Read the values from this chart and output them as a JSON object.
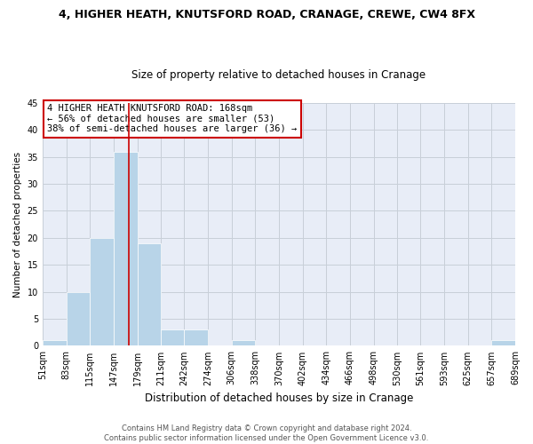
{
  "title": "4, HIGHER HEATH, KNUTSFORD ROAD, CRANAGE, CREWE, CW4 8FX",
  "subtitle": "Size of property relative to detached houses in Cranage",
  "xlabel": "Distribution of detached houses by size in Cranage",
  "ylabel": "Number of detached properties",
  "bar_color": "#b8d4e8",
  "bar_edge_color": "#ffffff",
  "marker_line_color": "#cc0000",
  "marker_value": 168,
  "bin_edges": [
    51,
    83,
    115,
    147,
    179,
    211,
    242,
    274,
    306,
    338,
    370,
    402,
    434,
    466,
    498,
    530,
    561,
    593,
    625,
    657,
    689
  ],
  "bin_labels": [
    "51sqm",
    "83sqm",
    "115sqm",
    "147sqm",
    "179sqm",
    "211sqm",
    "242sqm",
    "274sqm",
    "306sqm",
    "338sqm",
    "370sqm",
    "402sqm",
    "434sqm",
    "466sqm",
    "498sqm",
    "530sqm",
    "561sqm",
    "593sqm",
    "625sqm",
    "657sqm",
    "689sqm"
  ],
  "counts": [
    1,
    10,
    20,
    36,
    19,
    3,
    3,
    0,
    1,
    0,
    0,
    0,
    0,
    0,
    0,
    0,
    0,
    0,
    0,
    1
  ],
  "ylim": [
    0,
    45
  ],
  "yticks": [
    0,
    5,
    10,
    15,
    20,
    25,
    30,
    35,
    40,
    45
  ],
  "annotation_line1": "4 HIGHER HEATH KNUTSFORD ROAD: 168sqm",
  "annotation_line2": "← 56% of detached houses are smaller (53)",
  "annotation_line3": "38% of semi-detached houses are larger (36) →",
  "footer_line1": "Contains HM Land Registry data © Crown copyright and database right 2024.",
  "footer_line2": "Contains public sector information licensed under the Open Government Licence v3.0.",
  "background_color": "#ffffff",
  "plot_bg_color": "#e8edf7",
  "grid_color": "#c8cfd8",
  "title_fontsize": 9.0,
  "subtitle_fontsize": 8.5,
  "ylabel_fontsize": 7.5,
  "xlabel_fontsize": 8.5,
  "tick_fontsize": 7.0,
  "annot_fontsize": 7.5,
  "footer_fontsize": 6.0
}
